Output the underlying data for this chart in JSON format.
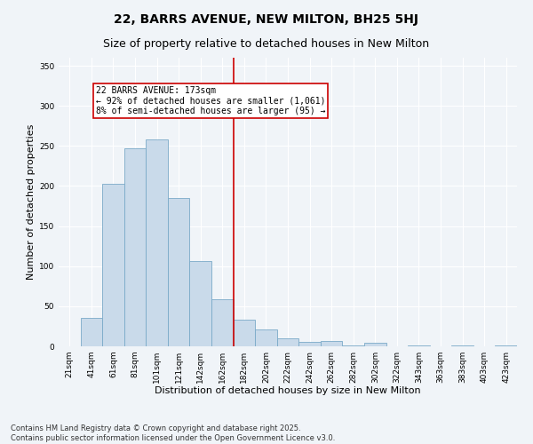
{
  "title": "22, BARRS AVENUE, NEW MILTON, BH25 5HJ",
  "subtitle": "Size of property relative to detached houses in New Milton",
  "xlabel": "Distribution of detached houses by size in New Milton",
  "ylabel": "Number of detached properties",
  "bar_color": "#c9daea",
  "bar_edge_color": "#7aaac8",
  "categories": [
    "21sqm",
    "41sqm",
    "61sqm",
    "81sqm",
    "101sqm",
    "121sqm",
    "142sqm",
    "162sqm",
    "182sqm",
    "202sqm",
    "222sqm",
    "242sqm",
    "262sqm",
    "282sqm",
    "302sqm",
    "322sqm",
    "343sqm",
    "363sqm",
    "383sqm",
    "403sqm",
    "423sqm"
  ],
  "values": [
    0,
    35,
    203,
    247,
    258,
    185,
    106,
    59,
    33,
    21,
    10,
    6,
    7,
    1,
    4,
    0,
    1,
    0,
    1,
    0,
    1
  ],
  "vline_x": 7.5,
  "vline_color": "#cc0000",
  "annotation_text": "22 BARRS AVENUE: 173sqm\n← 92% of detached houses are smaller (1,061)\n8% of semi-detached houses are larger (95) →",
  "annotation_box_color": "#cc0000",
  "annotation_bg": "#ffffff",
  "ylim": [
    0,
    360
  ],
  "yticks": [
    0,
    50,
    100,
    150,
    200,
    250,
    300,
    350
  ],
  "background_color": "#f0f4f8",
  "grid_color": "#ffffff",
  "footer": "Contains HM Land Registry data © Crown copyright and database right 2025.\nContains public sector information licensed under the Open Government Licence v3.0.",
  "title_fontsize": 10,
  "subtitle_fontsize": 9,
  "xlabel_fontsize": 8,
  "ylabel_fontsize": 8,
  "tick_fontsize": 6.5,
  "annotation_fontsize": 7,
  "footer_fontsize": 6
}
